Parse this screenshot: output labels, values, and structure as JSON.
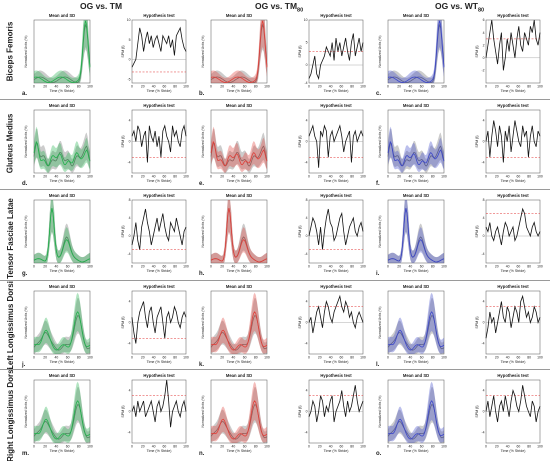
{
  "figure": {
    "column_titles": [
      {
        "main": "OG vs. TM",
        "sub": ""
      },
      {
        "main": "OG vs. TM",
        "sub": "80"
      },
      {
        "main": "OG vs. WT",
        "sub": "80"
      }
    ],
    "row_labels": [
      "Biceps Femoris",
      "Gluteus Medius",
      "Tensor Fasciae Latae",
      "Left Longissimus Dorsi",
      "Right Longissimus Dorsi"
    ],
    "panel_letters": [
      "a.",
      "b.",
      "c.",
      "d.",
      "e.",
      "f.",
      "g.",
      "h.",
      "i.",
      "j.",
      "k.",
      "l.",
      "m.",
      "n.",
      "o."
    ],
    "mean_title": "Mean and SD",
    "hyp_title": "Hypothesis test",
    "xlabel": "Time (% Stride)",
    "mean_ylabel": "Normalized Units (%)",
    "hyp_ylabel": "SPM {t}",
    "colors": {
      "og": "#6e6e6e",
      "tm": "#22b24c",
      "tm80": "#e0403a",
      "wt80": "#3c47c8",
      "threshold": "#e03030"
    }
  },
  "chart_data": {
    "type": "line",
    "xlim": [
      0,
      100
    ],
    "xticks": [
      0,
      20,
      40,
      60,
      80,
      100
    ],
    "comparisons": [
      "OG vs. TM",
      "OG vs. TM80",
      "OG vs. WT80"
    ],
    "rows": [
      {
        "muscle": "Biceps Femoris",
        "shape": "late",
        "hyp": [
          {
            "ylim": [
              -6,
              10
            ],
            "yticks": [
              -5,
              0,
              5,
              10
            ],
            "threshold": -3.2,
            "y": [
              -2,
              -1,
              0,
              4,
              8,
              6,
              2,
              5,
              7,
              4,
              6,
              3,
              5,
              6,
              4,
              2,
              6,
              5,
              4,
              6,
              3,
              5,
              1,
              6,
              7,
              8,
              5,
              3,
              2
            ]
          },
          {
            "ylim": [
              -4,
              10
            ],
            "yticks": [
              -4,
              0,
              5,
              10
            ],
            "threshold": 3.0,
            "y": [
              -3,
              -2,
              0,
              2,
              -2,
              -3,
              0,
              1,
              2,
              4,
              3,
              2,
              5,
              1,
              6,
              3,
              5,
              2,
              4,
              6,
              3,
              1,
              5,
              7,
              2,
              4,
              6,
              3,
              5
            ]
          },
          {
            "ylim": [
              -4,
              6
            ],
            "yticks": [
              -2,
              0,
              2,
              4,
              6
            ],
            "threshold": 3.0,
            "y": [
              0,
              2,
              4,
              6,
              3,
              1,
              -1,
              2,
              4,
              -2,
              0,
              3,
              1,
              4,
              2,
              0,
              3,
              5,
              2,
              1,
              4,
              3,
              2,
              5,
              4,
              6,
              3,
              2,
              4
            ]
          }
        ]
      },
      {
        "muscle": "Gluteus Medius",
        "shape": "flat",
        "hyp": [
          {
            "ylim": [
              -6,
              6
            ],
            "yticks": [
              -4,
              0,
              4
            ],
            "threshold": -3.0,
            "y": [
              1,
              2,
              0,
              3,
              2,
              -1,
              1,
              2,
              -4,
              3,
              1,
              0,
              2,
              -1,
              1,
              -3,
              2,
              3,
              1,
              0,
              -2,
              3,
              1,
              2,
              0,
              -1,
              2,
              3,
              1
            ]
          },
          {
            "ylim": [
              -6,
              6
            ],
            "yticks": [
              -4,
              0,
              4
            ],
            "threshold": -3.0,
            "y": [
              1,
              2,
              3,
              1,
              0,
              -5,
              2,
              1,
              3,
              2,
              -3,
              1,
              2,
              0,
              1,
              2,
              3,
              1,
              -2,
              0,
              1,
              2,
              -4,
              1,
              2,
              0,
              1,
              2,
              1
            ]
          },
          {
            "ylim": [
              -6,
              6
            ],
            "yticks": [
              -4,
              0,
              4
            ],
            "threshold": -3.0,
            "y": [
              0,
              2,
              -3,
              1,
              4,
              2,
              -1,
              3,
              1,
              -4,
              2,
              0,
              3,
              -2,
              1,
              4,
              2,
              0,
              -1,
              3,
              1,
              2,
              -3,
              1,
              3,
              0,
              -1,
              2,
              1
            ]
          }
        ]
      },
      {
        "muscle": "Tensor Fasciae Latae",
        "shape": "early",
        "hyp": [
          {
            "ylim": [
              -6,
              8
            ],
            "yticks": [
              -4,
              0,
              4,
              8
            ],
            "threshold": -3.0,
            "y": [
              -2,
              0,
              3,
              -1,
              -3,
              2,
              4,
              6,
              3,
              1,
              -2,
              0,
              2,
              4,
              1,
              3,
              5,
              2,
              0,
              -1,
              3,
              2,
              1,
              4,
              2,
              0,
              -2,
              1,
              2
            ]
          },
          {
            "ylim": [
              -6,
              8
            ],
            "yticks": [
              -4,
              0,
              4,
              8
            ],
            "threshold": -3.0,
            "y": [
              0,
              2,
              4,
              3,
              1,
              -2,
              2,
              -3,
              1,
              4,
              6,
              3,
              2,
              -1,
              0,
              2,
              4,
              5,
              1,
              -2,
              0,
              2,
              3,
              4,
              1,
              0,
              2,
              3,
              1
            ]
          },
          {
            "ylim": [
              -6,
              8
            ],
            "yticks": [
              -4,
              0,
              4,
              8
            ],
            "threshold": 5.0,
            "y": [
              2,
              1,
              3,
              0,
              -1,
              1,
              2,
              0,
              -2,
              1,
              3,
              2,
              0,
              1,
              2,
              -1,
              0,
              2,
              4,
              6,
              5,
              2,
              1,
              0,
              2,
              3,
              1,
              0,
              1
            ]
          }
        ]
      },
      {
        "muscle": "Left Longissimus Dorsi",
        "shape": "double",
        "hyp": [
          {
            "ylim": [
              -6,
              6
            ],
            "yticks": [
              -4,
              0,
              4
            ],
            "threshold": -3.0,
            "y": [
              1,
              -2,
              -4,
              0,
              2,
              3,
              4,
              1,
              -1,
              2,
              3,
              0,
              -2,
              1,
              2,
              3,
              0,
              -3,
              1,
              2,
              0,
              1,
              3,
              2,
              0,
              -1,
              1,
              2,
              1
            ]
          },
          {
            "ylim": [
              -6,
              6
            ],
            "yticks": [
              -4,
              0,
              4
            ],
            "threshold": 3.0,
            "y": [
              0,
              1,
              -2,
              0,
              2,
              3,
              1,
              -1,
              2,
              4,
              3,
              1,
              0,
              2,
              3,
              4,
              5,
              3,
              2,
              4,
              3,
              1,
              2,
              0,
              -1,
              1,
              2,
              1,
              0
            ]
          },
          {
            "ylim": [
              -6,
              6
            ],
            "yticks": [
              -4,
              0,
              4
            ],
            "threshold": 3.0,
            "y": [
              -3,
              -1,
              2,
              0,
              1,
              -2,
              0,
              2,
              4,
              1,
              0,
              3,
              2,
              -1,
              1,
              3,
              2,
              0,
              4,
              5,
              3,
              1,
              2,
              0,
              1,
              3,
              2,
              0,
              1
            ]
          }
        ]
      },
      {
        "muscle": "Right Longissimus Dorsi",
        "shape": "double",
        "hyp": [
          {
            "ylim": [
              -6,
              6
            ],
            "yticks": [
              -4,
              0,
              4
            ],
            "threshold": 3.0,
            "y": [
              0,
              1,
              -1,
              2,
              0,
              1,
              2,
              -1,
              0,
              1,
              2,
              0,
              -2,
              1,
              2,
              0,
              1,
              3,
              6,
              2,
              -3,
              0,
              1,
              2,
              0,
              -1,
              1,
              2,
              0
            ]
          },
          {
            "ylim": [
              -6,
              6
            ],
            "yticks": [
              -4,
              0,
              4
            ],
            "threshold": 3.0,
            "y": [
              -1,
              0,
              2,
              1,
              -2,
              0,
              3,
              2,
              -1,
              1,
              0,
              2,
              3,
              -2,
              0,
              1,
              2,
              4,
              1,
              -1,
              2,
              0,
              1,
              3,
              5,
              2,
              0,
              1,
              2
            ]
          },
          {
            "ylim": [
              -6,
              6
            ],
            "yticks": [
              -4,
              0,
              4
            ],
            "threshold": 3.0,
            "y": [
              0,
              2,
              -1,
              1,
              3,
              0,
              -2,
              1,
              2,
              0,
              3,
              1,
              -1,
              2,
              4,
              3,
              1,
              0,
              2,
              5,
              3,
              1,
              0,
              -1,
              2,
              1,
              -2,
              0,
              1
            ]
          }
        ]
      }
    ]
  }
}
